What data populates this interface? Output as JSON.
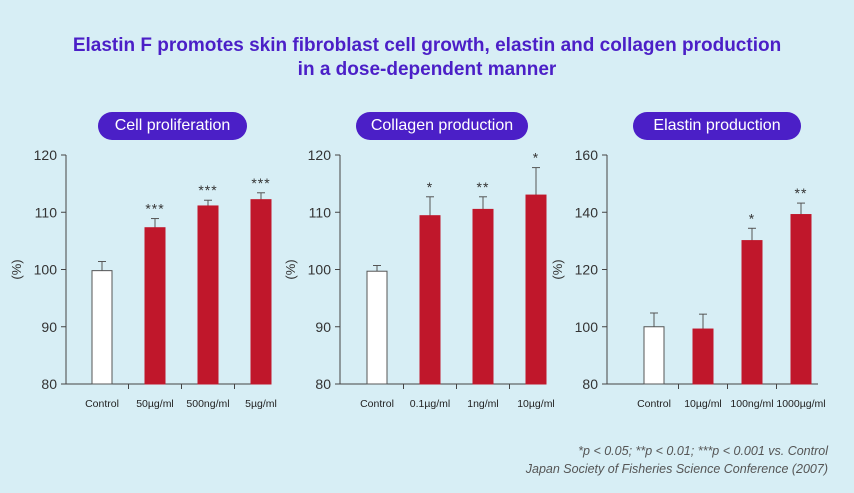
{
  "title": {
    "line1": "Elastin F promotes skin fibroblast cell growth, elastin and collagen production",
    "line2": "in a dose-dependent manner"
  },
  "colors": {
    "title": "#4b1fc7",
    "pill": "#4b1fc7",
    "bar": "#c0172b",
    "control_bar": "#ffffff",
    "background": "#d7eef5"
  },
  "footnote": {
    "line1": "*p < 0.05; **p < 0.01; ***p < 0.001 vs. Control",
    "line2": "Japan Society of Fisheries Science Conference (2007)"
  },
  "chart_data": [
    {
      "type": "bar",
      "title": "Cell proliferation",
      "ylabel": "(%)",
      "ylim": [
        80,
        120
      ],
      "yticks": [
        80,
        90,
        100,
        110,
        120
      ],
      "categories": [
        "Control",
        "50µg/ml",
        "500ng/ml",
        "5µg/ml"
      ],
      "values": [
        99.8,
        107.3,
        111.1,
        112.2
      ],
      "errors": [
        1.6,
        1.6,
        1.0,
        1.2
      ],
      "significance": [
        "",
        "***",
        "***",
        "***"
      ]
    },
    {
      "type": "bar",
      "title": "Collagen production",
      "ylabel": "(%)",
      "ylim": [
        80,
        120
      ],
      "yticks": [
        80,
        90,
        100,
        110,
        120
      ],
      "categories": [
        "Control",
        "0.1µg/ml",
        "1ng/ml",
        "10µg/ml"
      ],
      "values": [
        99.7,
        109.4,
        110.5,
        113.0
      ],
      "errors": [
        1.0,
        3.3,
        2.2,
        4.8
      ],
      "significance": [
        "",
        "*",
        "**",
        "*"
      ]
    },
    {
      "type": "bar",
      "title": "Elastin production",
      "ylabel": "(%)",
      "ylim": [
        80,
        160
      ],
      "yticks": [
        80,
        100,
        120,
        140,
        160
      ],
      "categories": [
        "Control",
        "10µg/ml",
        "100ng/ml",
        "1000µg/ml"
      ],
      "values": [
        100.0,
        99.2,
        130.1,
        139.2
      ],
      "errors": [
        4.8,
        5.2,
        4.3,
        4.0
      ],
      "significance": [
        "",
        "",
        "*",
        "**"
      ]
    }
  ]
}
